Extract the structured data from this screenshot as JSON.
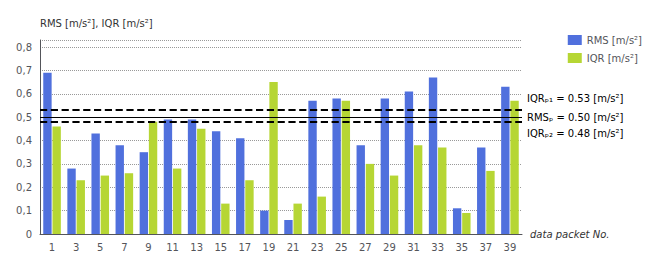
{
  "chart_data": {
    "type": "bar",
    "y_label": "RMS [m/s²], IQR [m/s²]",
    "x_label": "data packet No.",
    "categories": [
      "1",
      "3",
      "5",
      "7",
      "9",
      "11",
      "13",
      "15",
      "17",
      "19",
      "21",
      "23",
      "25",
      "27",
      "29",
      "31",
      "33",
      "35",
      "37",
      "39"
    ],
    "series": [
      {
        "name": "RMS [m/s²]",
        "values": [
          0.69,
          0.28,
          0.43,
          0.38,
          0.35,
          0.49,
          0.49,
          0.44,
          0.41,
          0.1,
          0.06,
          0.57,
          0.58,
          0.38,
          0.58,
          0.61,
          0.67,
          0.11,
          0.37,
          0.63
        ]
      },
      {
        "name": "IQR [m/s²]",
        "values": [
          0.46,
          0.23,
          0.25,
          0.26,
          0.48,
          0.28,
          0.45,
          0.13,
          0.23,
          0.65,
          0.13,
          0.16,
          0.57,
          0.3,
          0.25,
          0.38,
          0.37,
          0.09,
          0.27,
          0.57
        ]
      }
    ],
    "ylim": [
      0,
      0.83
    ],
    "yticks": [
      0,
      {
        "value": 0.1,
        "label": "0,1"
      },
      {
        "value": 0.2,
        "label": "0,2"
      },
      {
        "value": 0.3,
        "label": "0,3"
      },
      {
        "value": 0.4,
        "label": "0,4"
      },
      {
        "value": 0.5,
        "label": "0,5"
      },
      {
        "value": 0.6,
        "label": "0,6"
      },
      {
        "value": 0.7,
        "label": "0,7"
      },
      {
        "value": 0.8,
        "label": "0,8"
      }
    ],
    "grid": true,
    "legend": "upper right",
    "annotations": [
      {
        "y": 0.53,
        "text": "IQRₚ₁ = 0.53 [m/s²]",
        "line_style": "dashed"
      },
      {
        "y": 0.5,
        "text": "RMSₚ = 0.50 [m/s²]",
        "line_style": "solid"
      },
      {
        "y": 0.48,
        "text": "IQRₚ₂ = 0.48 [m/s²]",
        "line_style": "dashed"
      }
    ]
  }
}
